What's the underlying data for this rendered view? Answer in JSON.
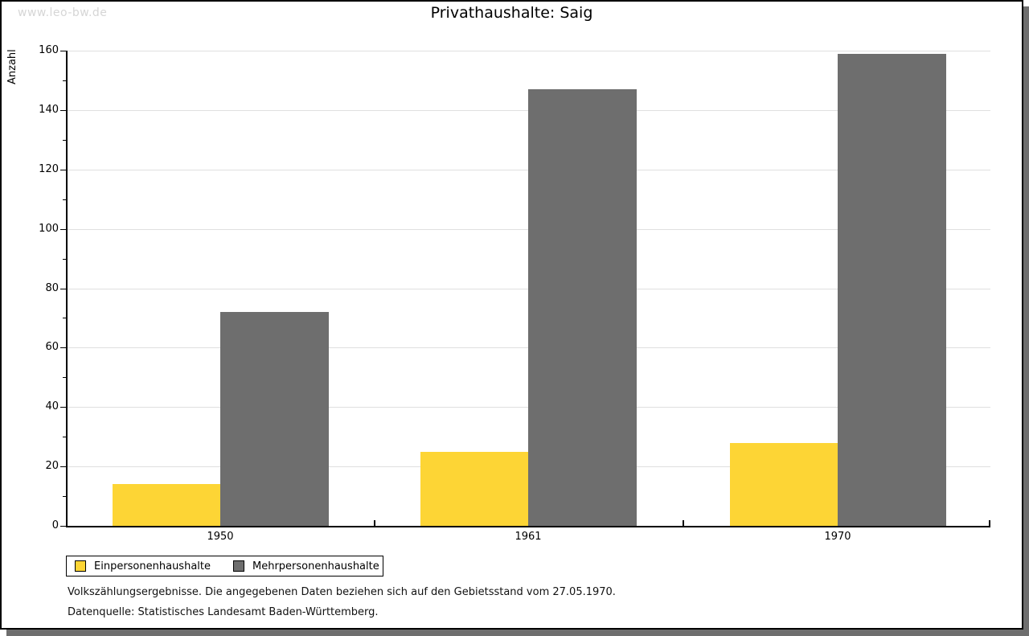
{
  "watermark": "www.leo-bw.de",
  "header": {
    "title": "Privathaushalte: Saig"
  },
  "chart_data": {
    "type": "bar",
    "title": "Privathaushalte: Saig",
    "categories": [
      "1950",
      "1961",
      "1970"
    ],
    "series": [
      {
        "name": "Einpersonenhaushalte",
        "color": "#fdd535",
        "values": [
          14,
          25,
          28
        ]
      },
      {
        "name": "Mehrpersonenhaushalte",
        "color": "#6e6e6e",
        "values": [
          72,
          147,
          159
        ]
      }
    ],
    "xlabel": "",
    "ylabel": "Anzahl",
    "ylim": [
      0,
      160
    ],
    "ytick_step": 20,
    "yminor_step": 10,
    "grid": true,
    "legend_position": "bottom-left"
  },
  "footnotes": {
    "line1": "Volkszählungsergebnisse. Die angegebenen Daten beziehen sich auf den Gebietsstand vom 27.05.1970.",
    "line2": "Datenquelle: Statistisches Landesamt Baden-Württemberg."
  },
  "colors": {
    "bar_yellow": "#fdd535",
    "bar_gray": "#6e6e6e",
    "gridline": "#e0e0e0",
    "frame_shadow": "#6e6e6e",
    "watermark": "#d6d6d6"
  }
}
